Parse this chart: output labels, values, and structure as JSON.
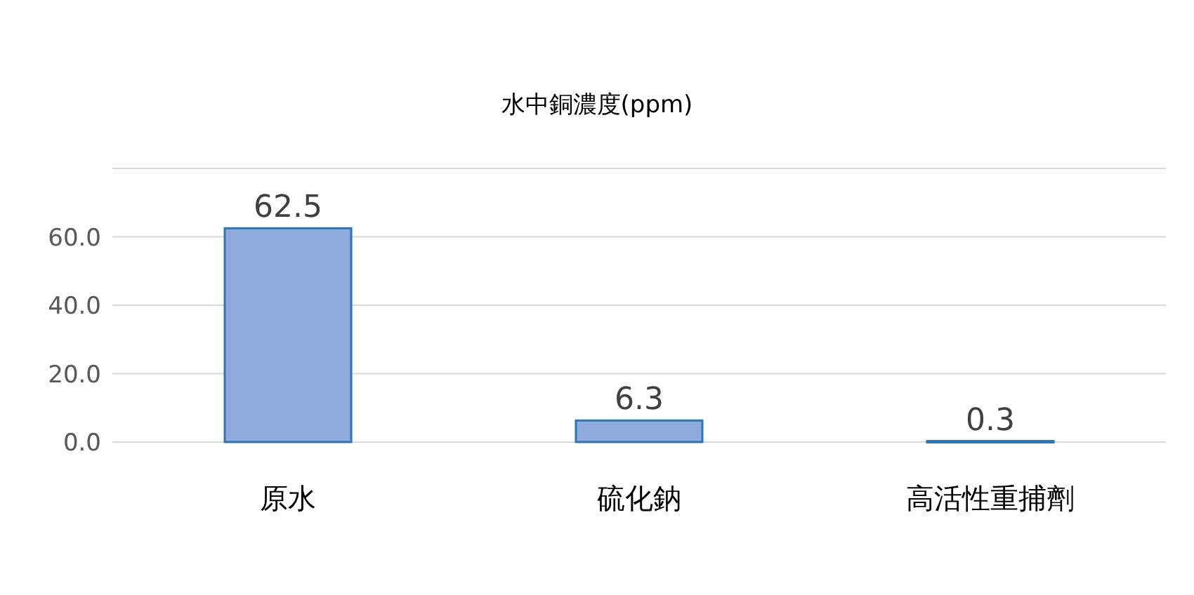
{
  "chart_data": {
    "type": "bar",
    "title": "水中銅濃度(ppm)",
    "categories": [
      "原水",
      "硫化鈉",
      "高活性重捕劑"
    ],
    "values": [
      62.5,
      6.3,
      0.3
    ],
    "color": "#8faadc",
    "data_labels": true,
    "ylim": [
      0,
      80
    ],
    "yticks": [
      {
        "value": 0,
        "label": "0.0"
      },
      {
        "value": 20,
        "label": "20.0"
      },
      {
        "value": 40,
        "label": "40.0"
      },
      {
        "value": 60,
        "label": "60.0"
      },
      {
        "value": 80,
        "label": null
      }
    ],
    "grid": "y"
  }
}
